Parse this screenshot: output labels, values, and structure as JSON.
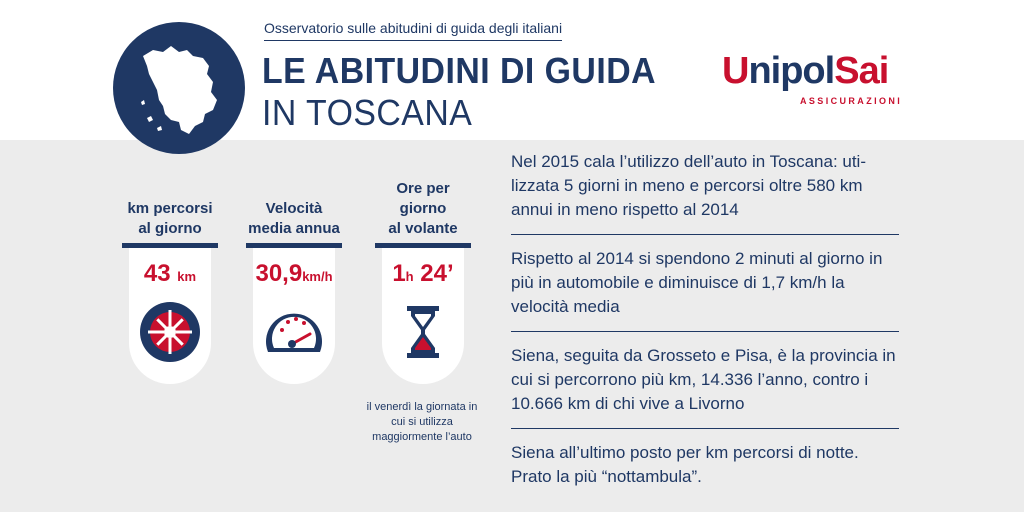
{
  "header": {
    "subtitle": "Osservatorio sulle abitudini di guida degli italiani",
    "title_line1": "LE ABITUDINI DI GUIDA",
    "title_line2": "IN TOSCANA"
  },
  "logo": {
    "word_part1": "U",
    "word_part2": "nipol",
    "word_part3": "Sai",
    "sub": "ASSICURAZIONI"
  },
  "stats": [
    {
      "label_line1": "km percorsi",
      "label_line2": "al giorno",
      "value": "43",
      "unit": "km",
      "icon": "wheel-icon"
    },
    {
      "label_line1": "Velocità",
      "label_line2": "media annua",
      "value": "30,9",
      "unit": "km/h",
      "icon": "speedometer-icon"
    },
    {
      "label_line1": "Ore per giorno",
      "label_line2": "al volante",
      "value_h": "1",
      "value_h_unit": "h",
      "value_m": "24’",
      "icon": "hourglass-icon"
    }
  ],
  "footnote": "il venerdì la giornata in cui si utilizza maggiormente l’auto",
  "facts": [
    "Nel 2015 cala l’utilizzo dell’auto in Toscana: uti-lizzata 5 giorni in meno e percorsi oltre 580 km annui in meno rispetto al 2014",
    "Rispetto al 2014 si spendono 2 minuti al giorno in più in automobile e diminuisce di 1,7 km/h la velocità media",
    "Siena, seguita da Grosseto e Pisa, è la provincia in cui si percorrono più km, 14.336 l’anno, contro i 10.666 km di chi vive a Livorno",
    "Siena all’ultimo posto per km percorsi di notte. Prato la più “nottambula”."
  ],
  "colors": {
    "navy": "#1f3864",
    "red": "#c8102e",
    "background": "#ececec"
  }
}
